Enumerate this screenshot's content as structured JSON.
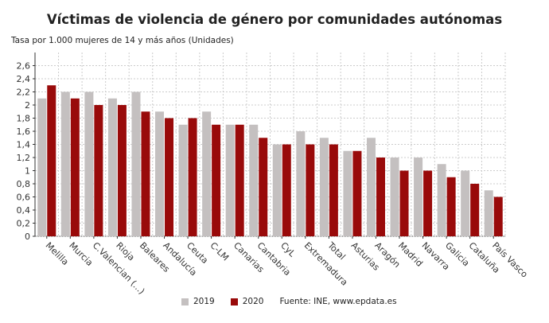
{
  "chart_data": {
    "type": "bar",
    "title": "Víctimas de violencia de género por comunidades autónomas",
    "ylabel": "Tasa por 1.000 mujeres de 14 y más años (Unidades)",
    "xlabel": "",
    "categories": [
      "Melilla",
      "Murcia",
      "C.Valencian (...)",
      "Rioja",
      "Baleares",
      "Andalucía",
      "Ceuta",
      "C-LM",
      "Canarias",
      "Cantabria",
      "CyL",
      "Extremadura",
      "Total",
      "Asturias",
      "Aragón",
      "Madrid",
      "Navarra",
      "Galicia",
      "Cataluña",
      "País Vasco"
    ],
    "series": [
      {
        "name": "2019",
        "color": "#c4c0c0",
        "values": [
          2.1,
          2.2,
          2.2,
          2.1,
          2.2,
          1.9,
          1.7,
          1.9,
          1.7,
          1.7,
          1.4,
          1.6,
          1.5,
          1.3,
          1.5,
          1.2,
          1.2,
          1.1,
          1.0,
          0.7
        ]
      },
      {
        "name": "2020",
        "color": "#990a0a",
        "values": [
          2.3,
          2.1,
          2.0,
          2.0,
          1.9,
          1.8,
          1.8,
          1.7,
          1.7,
          1.5,
          1.4,
          1.4,
          1.4,
          1.3,
          1.2,
          1.0,
          1.0,
          0.9,
          0.8,
          0.6
        ]
      }
    ],
    "yticks": [
      "0",
      "0,2",
      "0,4",
      "0,6",
      "0,8",
      "1",
      "1,2",
      "1,4",
      "1,6",
      "1,8",
      "2",
      "2,2",
      "2,4",
      "2,6"
    ],
    "ylim": [
      0,
      2.8
    ],
    "grid": true,
    "legend": "bottom",
    "source": "Fuente: INE, www.epdata.es"
  }
}
